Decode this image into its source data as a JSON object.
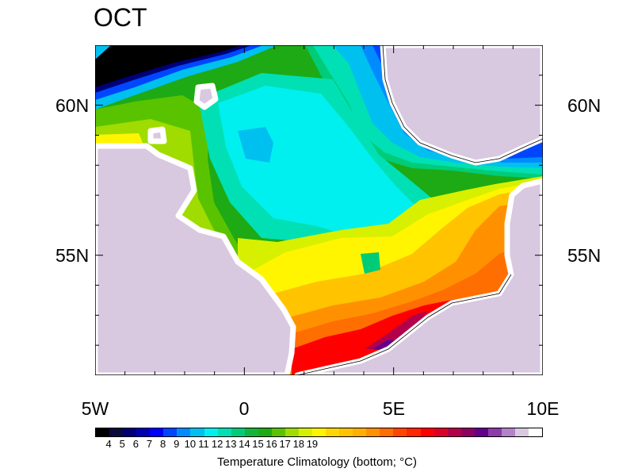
{
  "title": "OCT",
  "lat_labels": [
    "60N",
    "55N"
  ],
  "lon_labels": [
    "5W",
    "0",
    "5E",
    "10E"
  ],
  "colorbar": {
    "title": "Temperature Climatology (bottom; °C)",
    "labels": [
      "4",
      "5",
      "6",
      "7",
      "8",
      "9",
      "10",
      "11",
      "12",
      "13",
      "14",
      "15",
      "16",
      "17",
      "18",
      "19"
    ],
    "colors": [
      "#000000",
      "#0a0a3c",
      "#000078",
      "#0000b4",
      "#0000ff",
      "#0046ff",
      "#008cff",
      "#00c0f0",
      "#00f0f0",
      "#00e0b4",
      "#00cc78",
      "#14b43c",
      "#1eaa14",
      "#5ac300",
      "#a0dc00",
      "#d7f000",
      "#fff500",
      "#ffd700",
      "#ffc300",
      "#ffb000",
      "#ff9100",
      "#ff6e00",
      "#ff4600",
      "#ff2800",
      "#ff0000",
      "#dc0028",
      "#b4004b",
      "#8c0064",
      "#64008c",
      "#8c3caa",
      "#b482c8",
      "#d8c8e0",
      "#ffffff"
    ]
  },
  "land_color": "#d8c8e0"
}
